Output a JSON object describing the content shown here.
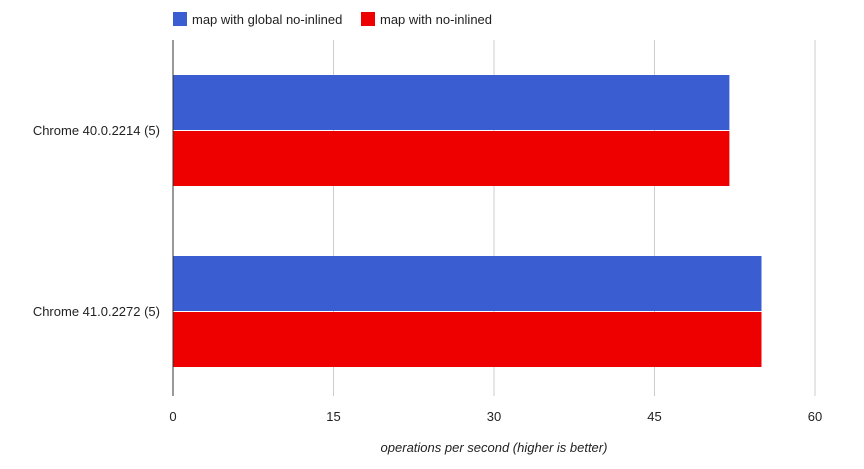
{
  "chart_data": {
    "type": "bar",
    "orientation": "horizontal",
    "categories": [
      "Chrome 40.0.2214 (5)",
      "Chrome 41.0.2272 (5)"
    ],
    "series": [
      {
        "name": "map with global no-inlined",
        "color": "#3a5ed1",
        "values": [
          52,
          55
        ]
      },
      {
        "name": "map with no-inlined",
        "color": "#ee0000",
        "values": [
          52,
          55
        ]
      }
    ],
    "xlabel": "operations per second (higher is better)",
    "xlim": [
      0,
      60
    ],
    "xticks": [
      0,
      15,
      30,
      45,
      60
    ],
    "grid": true,
    "legend": "top-left"
  }
}
